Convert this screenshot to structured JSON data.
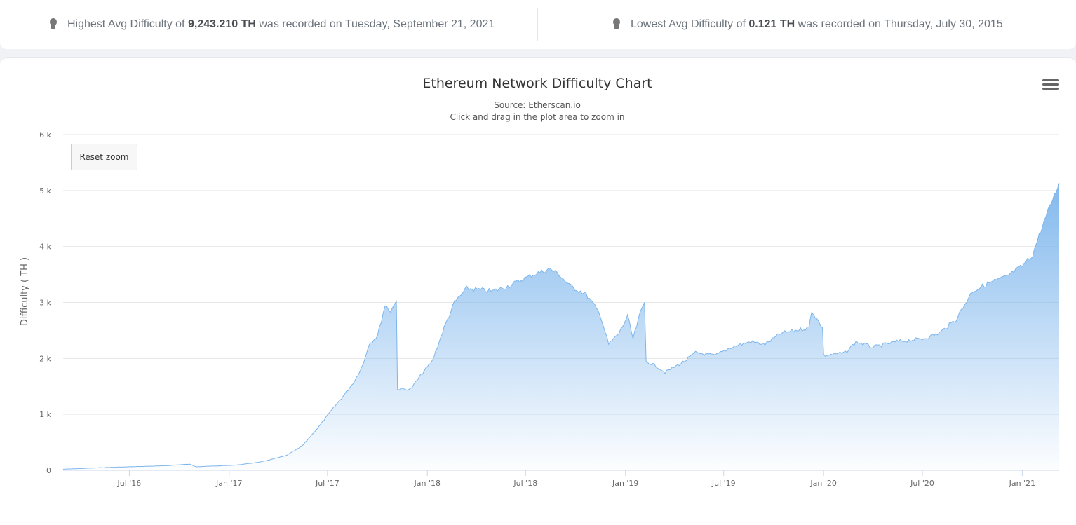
{
  "stats": {
    "high": {
      "prefix": "Highest Avg Difficulty of ",
      "value": "9,243.210 TH",
      "suffix": " was recorded on Tuesday, September 21, 2021"
    },
    "low": {
      "prefix": "Lowest Avg Difficulty of ",
      "value": "0.121 TH",
      "suffix": " was recorded on Thursday, July 30, 2015"
    }
  },
  "chart_data": {
    "type": "area",
    "title": "Ethereum Network Difficulty Chart",
    "subtitle": "Source: Etherscan.io",
    "zoom_hint": "Click and drag in the plot area to zoom in",
    "xlabel": "",
    "ylabel": "Difficulty ( TH )",
    "ylim": [
      0,
      6000
    ],
    "xlim": [
      "2016-03-01",
      "2021-03-10"
    ],
    "y_ticks": [
      0,
      1000,
      2000,
      3000,
      4000,
      5000,
      6000
    ],
    "y_tick_labels": [
      "0",
      "1 k",
      "2 k",
      "3 k",
      "4 k",
      "5 k",
      "6 k"
    ],
    "x_ticks": [
      {
        "date": "2016-07-01",
        "label": "Jul '16"
      },
      {
        "date": "2017-01-01",
        "label": "Jan '17"
      },
      {
        "date": "2017-07-01",
        "label": "Jul '17"
      },
      {
        "date": "2018-01-01",
        "label": "Jan '18"
      },
      {
        "date": "2018-07-01",
        "label": "Jul '18"
      },
      {
        "date": "2019-01-01",
        "label": "Jan '19"
      },
      {
        "date": "2019-07-01",
        "label": "Jul '19"
      },
      {
        "date": "2020-01-01",
        "label": "Jan '20"
      },
      {
        "date": "2020-07-01",
        "label": "Jul '20"
      },
      {
        "date": "2021-01-01",
        "label": "Jan '21"
      }
    ],
    "grid": true,
    "legend": false,
    "series": [
      {
        "color": "#7cb5ec",
        "points": [
          [
            "2016-03-01",
            20
          ],
          [
            "2016-06-01",
            55
          ],
          [
            "2016-09-01",
            80
          ],
          [
            "2016-10-20",
            110
          ],
          [
            "2016-11-01",
            65
          ],
          [
            "2016-12-15",
            80
          ],
          [
            "2017-01-15",
            95
          ],
          [
            "2017-03-01",
            150
          ],
          [
            "2017-04-15",
            260
          ],
          [
            "2017-05-15",
            430
          ],
          [
            "2017-06-15",
            780
          ],
          [
            "2017-07-15",
            1150
          ],
          [
            "2017-08-05",
            1400
          ],
          [
            "2017-08-20",
            1600
          ],
          [
            "2017-09-05",
            1900
          ],
          [
            "2017-09-15",
            2250
          ],
          [
            "2017-10-01",
            2400
          ],
          [
            "2017-10-15",
            2950
          ],
          [
            "2017-10-25",
            2850
          ],
          [
            "2017-11-05",
            3020
          ],
          [
            "2017-11-07",
            1450
          ],
          [
            "2017-12-01",
            1450
          ],
          [
            "2017-12-20",
            1700
          ],
          [
            "2018-01-10",
            1950
          ],
          [
            "2018-02-01",
            2550
          ],
          [
            "2018-02-20",
            3000
          ],
          [
            "2018-03-15",
            3250
          ],
          [
            "2018-05-01",
            3200
          ],
          [
            "2018-06-01",
            3300
          ],
          [
            "2018-07-15",
            3500
          ],
          [
            "2018-08-15",
            3600
          ],
          [
            "2018-09-01",
            3500
          ],
          [
            "2018-09-20",
            3300
          ],
          [
            "2018-10-20",
            3150
          ],
          [
            "2018-11-15",
            2800
          ],
          [
            "2018-12-01",
            2250
          ],
          [
            "2018-12-20",
            2450
          ],
          [
            "2019-01-05",
            2750
          ],
          [
            "2019-01-15",
            2350
          ],
          [
            "2019-01-28",
            2800
          ],
          [
            "2019-02-05",
            3000
          ],
          [
            "2019-02-08",
            1950
          ],
          [
            "2019-03-01",
            1850
          ],
          [
            "2019-03-15",
            1750
          ],
          [
            "2019-04-20",
            1950
          ],
          [
            "2019-05-10",
            2100
          ],
          [
            "2019-06-15",
            2050
          ],
          [
            "2019-07-15",
            2200
          ],
          [
            "2019-08-20",
            2300
          ],
          [
            "2019-09-15",
            2250
          ],
          [
            "2019-10-15",
            2450
          ],
          [
            "2019-11-10",
            2500
          ],
          [
            "2019-12-05",
            2550
          ],
          [
            "2019-12-10",
            2850
          ],
          [
            "2019-12-30",
            2550
          ],
          [
            "2020-01-01",
            2050
          ],
          [
            "2020-02-10",
            2100
          ],
          [
            "2020-03-01",
            2300
          ],
          [
            "2020-04-01",
            2200
          ],
          [
            "2020-05-15",
            2300
          ],
          [
            "2020-07-01",
            2350
          ],
          [
            "2020-08-01",
            2450
          ],
          [
            "2020-09-01",
            2700
          ],
          [
            "2020-10-01",
            3200
          ],
          [
            "2020-11-01",
            3350
          ],
          [
            "2020-12-01",
            3450
          ],
          [
            "2021-01-01",
            3650
          ],
          [
            "2021-01-20",
            3850
          ],
          [
            "2021-02-01",
            4200
          ],
          [
            "2021-02-20",
            4700
          ],
          [
            "2021-03-10",
            5130
          ]
        ]
      }
    ]
  }
}
